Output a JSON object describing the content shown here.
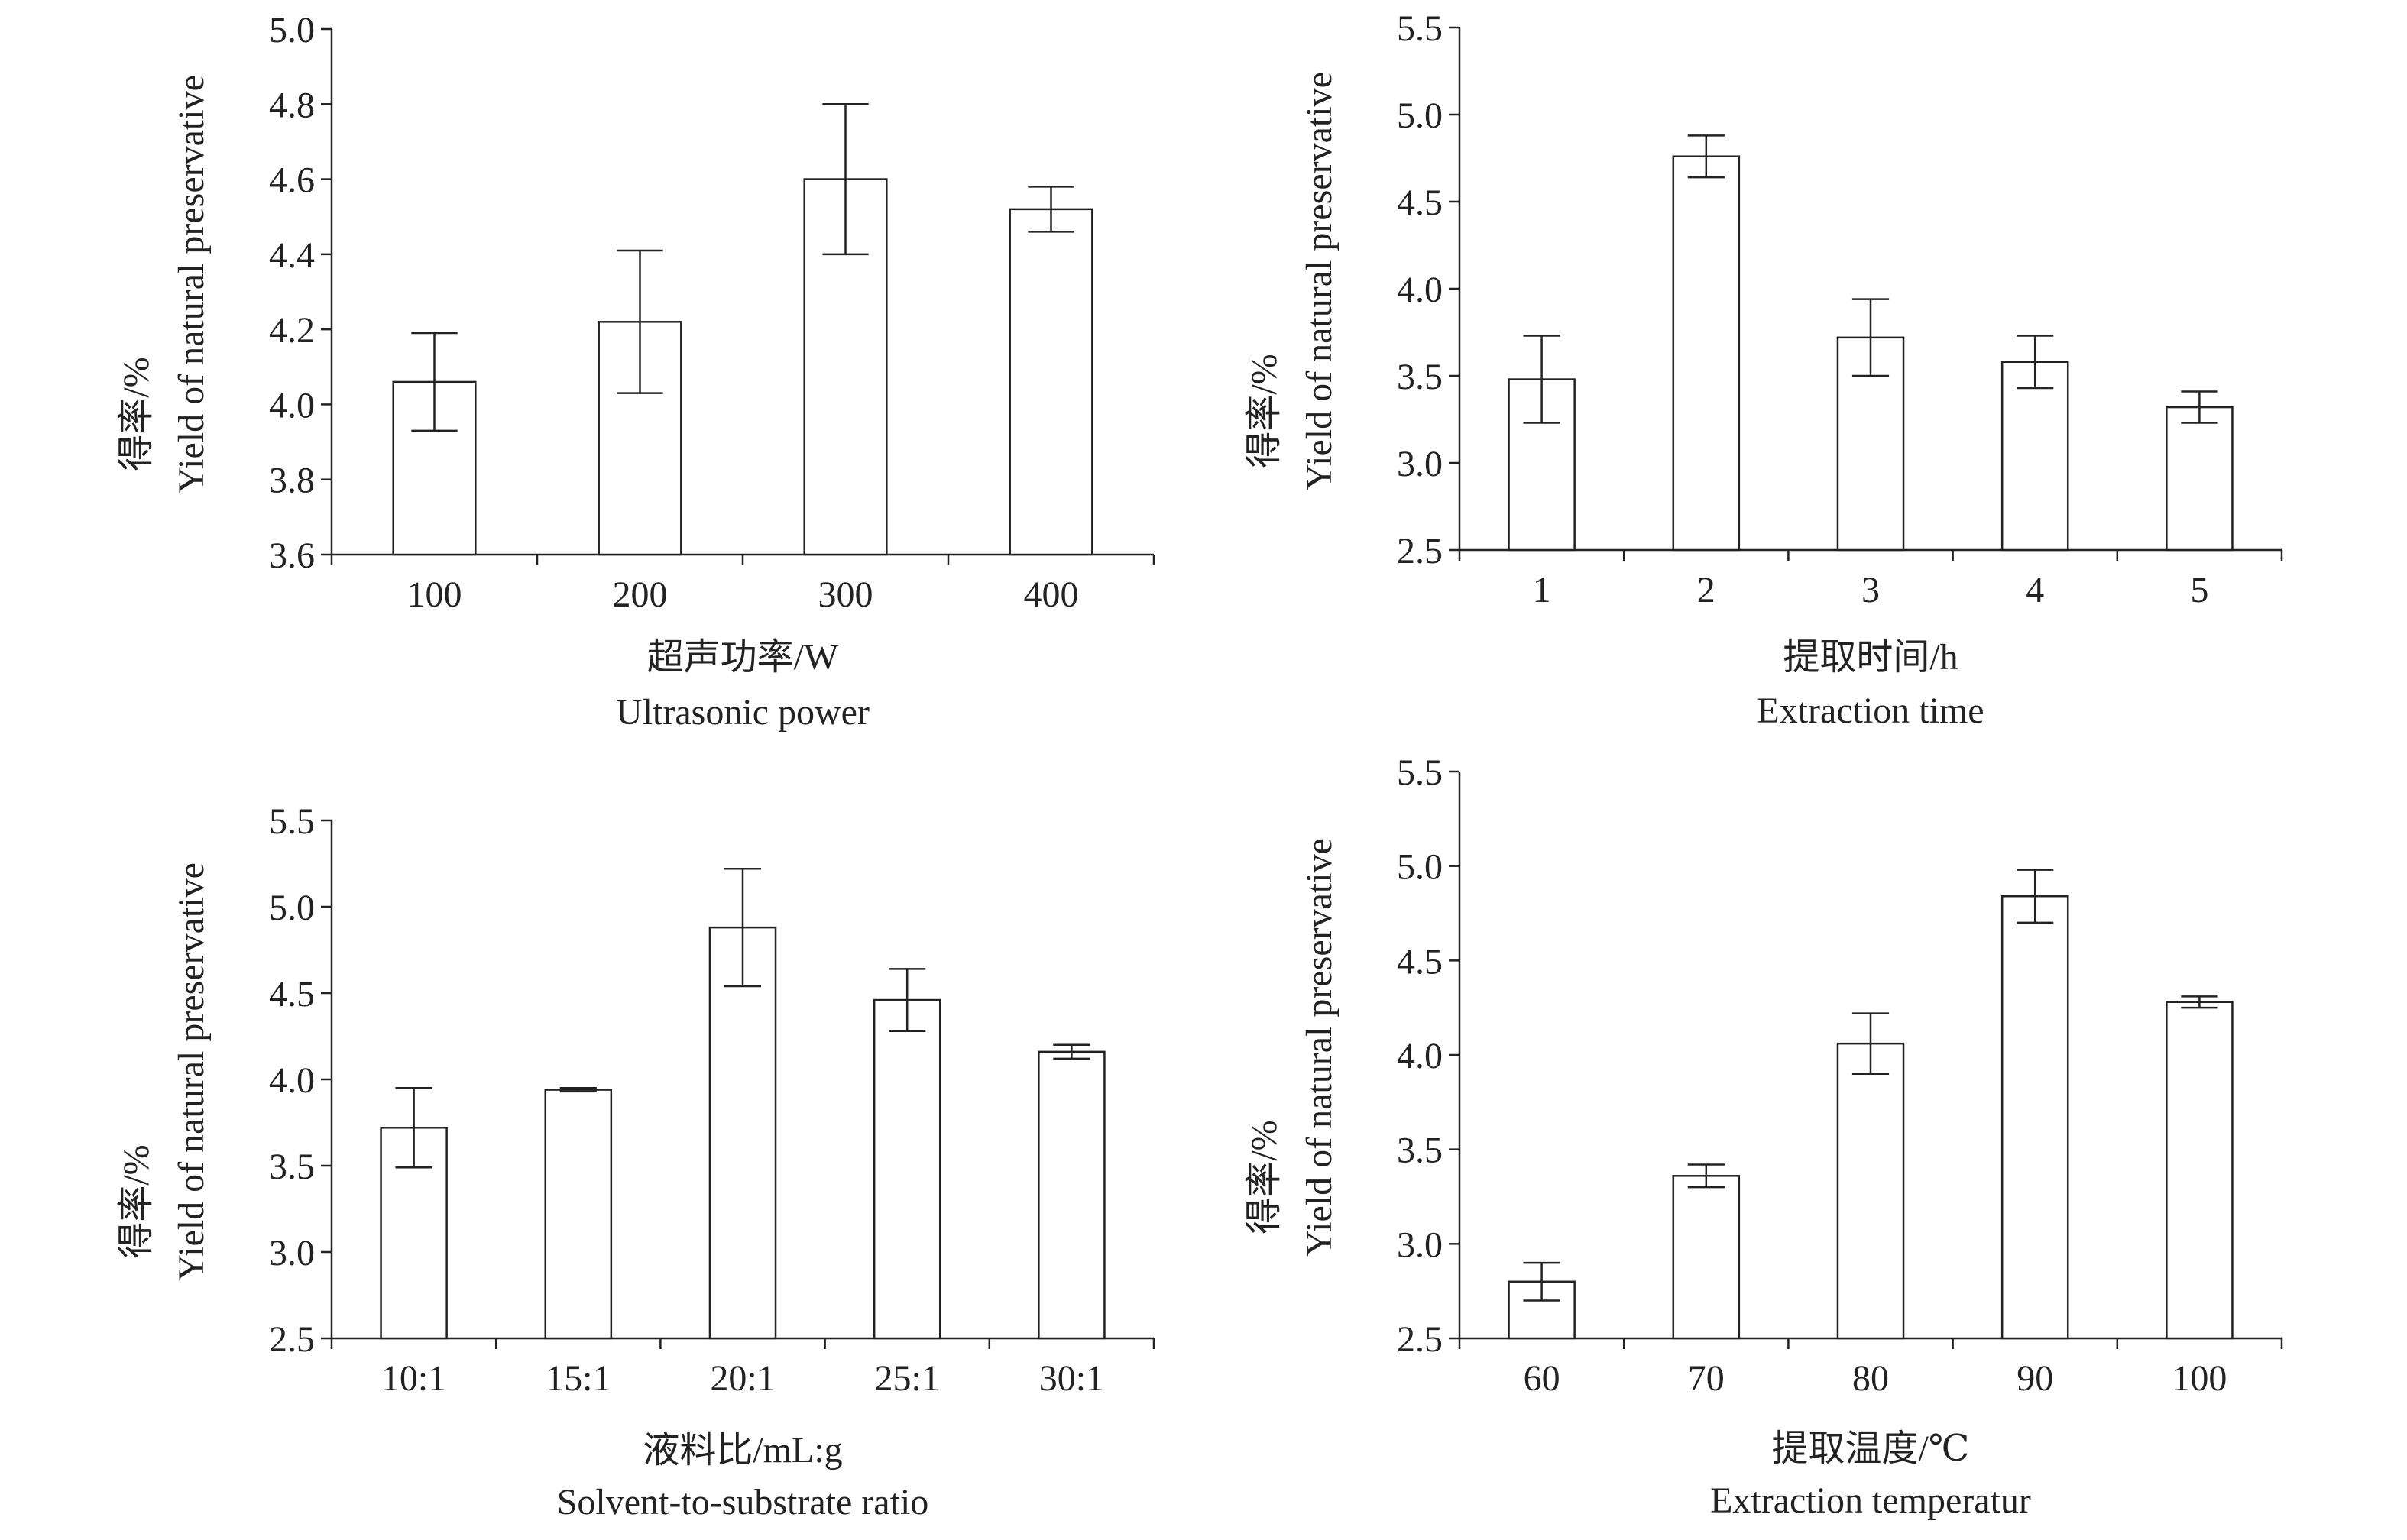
{
  "colors": {
    "ink": "#222222",
    "bar_fill": "#ffffff"
  },
  "chart_data": [
    {
      "type": "bar",
      "panel": "top-left",
      "ylabel_cn": "得率/%",
      "ylabel_en": "Yield of natural preservative",
      "xlabel_cn": "超声功率/W",
      "xlabel_en": "Ultrasonic power",
      "categories": [
        "100",
        "200",
        "300",
        "400"
      ],
      "values": [
        4.06,
        4.22,
        4.6,
        4.52
      ],
      "errors": [
        0.13,
        0.19,
        0.2,
        0.06
      ],
      "ylim": [
        3.6,
        5.0
      ],
      "yticks": [
        3.6,
        3.8,
        4.0,
        4.2,
        4.4,
        4.6,
        4.8,
        5.0
      ],
      "ytick_labels": [
        "3.6",
        "3.8",
        "4.0",
        "4.2",
        "4.4",
        "4.6",
        "4.8",
        "5.0"
      ]
    },
    {
      "type": "bar",
      "panel": "top-right",
      "ylabel_cn": "得率/%",
      "ylabel_en": "Yield of natural preservative",
      "xlabel_cn": "提取时间/h",
      "xlabel_en": "Extraction time",
      "categories": [
        "1",
        "2",
        "3",
        "4",
        "5"
      ],
      "values": [
        3.48,
        4.76,
        3.72,
        3.58,
        3.32
      ],
      "errors": [
        0.25,
        0.12,
        0.22,
        0.15,
        0.09
      ],
      "ylim": [
        2.5,
        5.5
      ],
      "yticks": [
        2.5,
        3.0,
        3.5,
        4.0,
        4.5,
        5.0,
        5.5
      ],
      "ytick_labels": [
        "2.5",
        "3.0",
        "3.5",
        "4.0",
        "4.5",
        "5.0",
        "5.5"
      ]
    },
    {
      "type": "bar",
      "panel": "bottom-left",
      "ylabel_cn": "得率/%",
      "ylabel_en": "Yield of natural preservative",
      "xlabel_cn": "液料比/mL:g",
      "xlabel_en": "Solvent-to-substrate ratio",
      "categories": [
        "10:1",
        "15:1",
        "20:1",
        "25:1",
        "30:1"
      ],
      "values": [
        3.72,
        3.94,
        4.88,
        4.46,
        4.16
      ],
      "errors": [
        0.23,
        0.01,
        0.34,
        0.18,
        0.04
      ],
      "ylim": [
        2.5,
        5.5
      ],
      "yticks": [
        2.5,
        3.0,
        3.5,
        4.0,
        4.5,
        5.0,
        5.5
      ],
      "ytick_labels": [
        "2.5",
        "3.0",
        "3.5",
        "4.0",
        "4.5",
        "5.0",
        "5.5"
      ]
    },
    {
      "type": "bar",
      "panel": "bottom-right",
      "ylabel_cn": "得率/%",
      "ylabel_en": "Yield of natural preservative",
      "xlabel_cn": "提取温度/℃",
      "xlabel_en": "Extraction temperatur",
      "categories": [
        "60",
        "70",
        "80",
        "90",
        "100"
      ],
      "values": [
        2.8,
        3.36,
        4.06,
        4.84,
        4.28
      ],
      "errors": [
        0.1,
        0.06,
        0.16,
        0.14,
        0.03
      ],
      "ylim": [
        2.5,
        5.5
      ],
      "yticks": [
        2.5,
        3.0,
        3.5,
        4.0,
        4.5,
        5.0,
        5.5
      ],
      "ytick_labels": [
        "2.5",
        "3.0",
        "3.5",
        "4.0",
        "4.5",
        "5.0",
        "5.5"
      ]
    }
  ]
}
